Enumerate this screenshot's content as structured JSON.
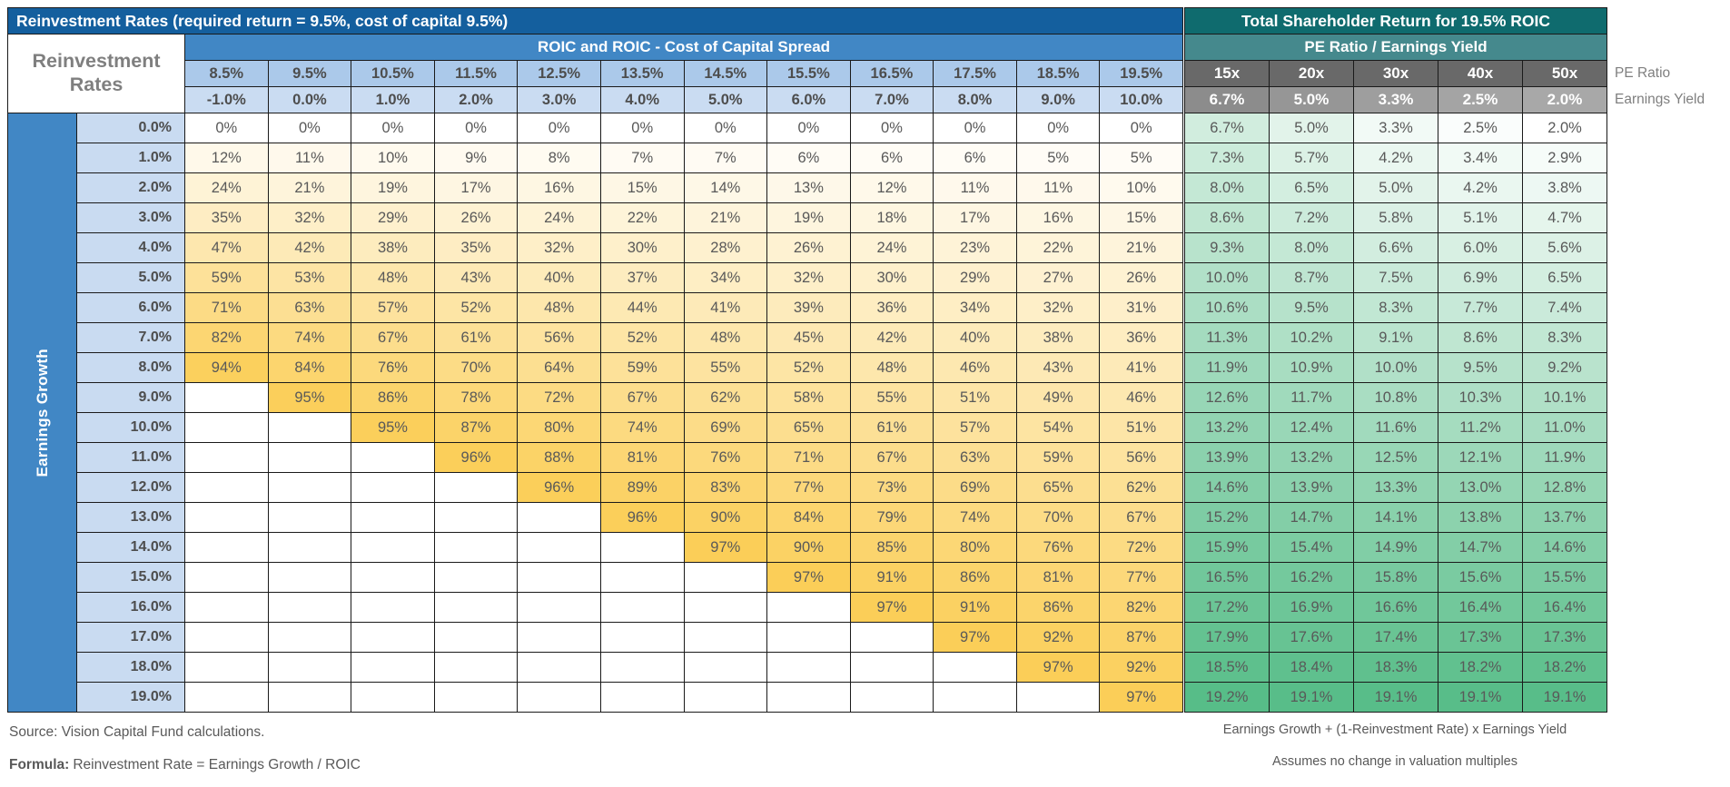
{
  "corner_label": "Reinvestment Rates",
  "side_labels": {
    "pe": "PE Ratio",
    "ey": "Earnings Yield"
  },
  "footnotes": {
    "source": "Source: Vision Capital Fund calculations.",
    "formula_label": "Formula:",
    "formula_text": "Reinvestment Rate = Earnings Growth / ROIC",
    "tsr_formula": "Earnings Growth + (1-Reinvestment Rate) x Earnings Yield",
    "tsr_assumption": "Assumes no change in valuation multiples"
  },
  "colors": {
    "title_blue": "#145f9e",
    "mid_blue": "#4187c5",
    "light_blue": "#abc9ea",
    "lighter_blue": "#cadcf2",
    "row_label_blue": "#c9dbf1",
    "title_teal": "#0f6b6e",
    "mid_teal": "#45898d",
    "pe_gray": "#696969",
    "grid_line": "#1a1a1a",
    "text_gray": "#595959",
    "header_text": "#4d4d4d",
    "corner_text": "#7f7f7f",
    "footnote_text": "#595959",
    "ey_grays": [
      "#8c8c8c",
      "#969696",
      "#9e9e9e",
      "#a4a4a4",
      "#a8a8a8"
    ]
  },
  "chart_data": [
    {
      "type": "heatmap",
      "title": "Reinvestment Rates (required return = 9.5%, cost of capital 9.5%)",
      "subtitle": "ROIC and ROIC - Cost of Capital Spread",
      "ylabel": "Earnings Growth",
      "roic_headers": [
        "8.5%",
        "9.5%",
        "10.5%",
        "11.5%",
        "12.5%",
        "13.5%",
        "14.5%",
        "15.5%",
        "16.5%",
        "17.5%",
        "18.5%",
        "19.5%"
      ],
      "spread_headers": [
        "-1.0%",
        "0.0%",
        "1.0%",
        "2.0%",
        "3.0%",
        "4.0%",
        "5.0%",
        "6.0%",
        "7.0%",
        "8.0%",
        "9.0%",
        "10.0%"
      ],
      "y_categories": [
        "0.0%",
        "1.0%",
        "2.0%",
        "3.0%",
        "4.0%",
        "5.0%",
        "6.0%",
        "7.0%",
        "8.0%",
        "9.0%",
        "10.0%",
        "11.0%",
        "12.0%",
        "13.0%",
        "14.0%",
        "15.0%",
        "16.0%",
        "17.0%",
        "18.0%",
        "19.0%"
      ],
      "values_pct": [
        [
          0,
          0,
          0,
          0,
          0,
          0,
          0,
          0,
          0,
          0,
          0,
          0
        ],
        [
          12,
          11,
          10,
          9,
          8,
          7,
          7,
          6,
          6,
          6,
          5,
          5
        ],
        [
          24,
          21,
          19,
          17,
          16,
          15,
          14,
          13,
          12,
          11,
          11,
          10
        ],
        [
          35,
          32,
          29,
          26,
          24,
          22,
          21,
          19,
          18,
          17,
          16,
          15
        ],
        [
          47,
          42,
          38,
          35,
          32,
          30,
          28,
          26,
          24,
          23,
          22,
          21
        ],
        [
          59,
          53,
          48,
          43,
          40,
          37,
          34,
          32,
          30,
          29,
          27,
          26
        ],
        [
          71,
          63,
          57,
          52,
          48,
          44,
          41,
          39,
          36,
          34,
          32,
          31
        ],
        [
          82,
          74,
          67,
          61,
          56,
          52,
          48,
          45,
          42,
          40,
          38,
          36
        ],
        [
          94,
          84,
          76,
          70,
          64,
          59,
          55,
          52,
          48,
          46,
          43,
          41
        ],
        [
          null,
          95,
          86,
          78,
          72,
          67,
          62,
          58,
          55,
          51,
          49,
          46
        ],
        [
          null,
          null,
          95,
          87,
          80,
          74,
          69,
          65,
          61,
          57,
          54,
          51
        ],
        [
          null,
          null,
          null,
          96,
          88,
          81,
          76,
          71,
          67,
          63,
          59,
          56
        ],
        [
          null,
          null,
          null,
          null,
          96,
          89,
          83,
          77,
          73,
          69,
          65,
          62
        ],
        [
          null,
          null,
          null,
          null,
          null,
          96,
          90,
          84,
          79,
          74,
          70,
          67
        ],
        [
          null,
          null,
          null,
          null,
          null,
          null,
          97,
          90,
          85,
          80,
          76,
          72
        ],
        [
          null,
          null,
          null,
          null,
          null,
          null,
          null,
          97,
          91,
          86,
          81,
          77
        ],
        [
          null,
          null,
          null,
          null,
          null,
          null,
          null,
          null,
          97,
          91,
          86,
          82
        ],
        [
          null,
          null,
          null,
          null,
          null,
          null,
          null,
          null,
          null,
          97,
          92,
          87
        ],
        [
          null,
          null,
          null,
          null,
          null,
          null,
          null,
          null,
          null,
          null,
          97,
          92
        ],
        [
          null,
          null,
          null,
          null,
          null,
          null,
          null,
          null,
          null,
          null,
          null,
          97
        ]
      ],
      "colorscale": {
        "min": 0,
        "max": 97,
        "min_color": "#ffffff",
        "max_color": "#fbce58"
      }
    },
    {
      "type": "heatmap",
      "title": "Total Shareholder Return for 19.5% ROIC",
      "subtitle": "PE Ratio / Earnings Yield",
      "pe_headers": [
        "15x",
        "20x",
        "30x",
        "40x",
        "50x"
      ],
      "earnings_yield_headers": [
        "6.7%",
        "5.0%",
        "3.3%",
        "2.5%",
        "2.0%"
      ],
      "values_pct": [
        [
          6.7,
          5.0,
          3.3,
          2.5,
          2.0
        ],
        [
          7.3,
          5.7,
          4.2,
          3.4,
          2.9
        ],
        [
          8.0,
          6.5,
          5.0,
          4.2,
          3.8
        ],
        [
          8.6,
          7.2,
          5.8,
          5.1,
          4.7
        ],
        [
          9.3,
          8.0,
          6.6,
          6.0,
          5.6
        ],
        [
          10.0,
          8.7,
          7.5,
          6.9,
          6.5
        ],
        [
          10.6,
          9.5,
          8.3,
          7.7,
          7.4
        ],
        [
          11.3,
          10.2,
          9.1,
          8.6,
          8.3
        ],
        [
          11.9,
          10.9,
          10.0,
          9.5,
          9.2
        ],
        [
          12.6,
          11.7,
          10.8,
          10.3,
          10.1
        ],
        [
          13.2,
          12.4,
          11.6,
          11.2,
          11.0
        ],
        [
          13.9,
          13.2,
          12.5,
          12.1,
          11.9
        ],
        [
          14.6,
          13.9,
          13.3,
          13.0,
          12.8
        ],
        [
          15.2,
          14.7,
          14.1,
          13.8,
          13.7
        ],
        [
          15.9,
          15.4,
          14.9,
          14.7,
          14.6
        ],
        [
          16.5,
          16.2,
          15.8,
          15.6,
          15.5
        ],
        [
          17.2,
          16.9,
          16.6,
          16.4,
          16.4
        ],
        [
          17.9,
          17.6,
          17.4,
          17.3,
          17.3
        ],
        [
          18.5,
          18.4,
          18.3,
          18.2,
          18.2
        ],
        [
          19.2,
          19.1,
          19.1,
          19.1,
          19.1
        ]
      ],
      "colorscale": {
        "min": 2.0,
        "max": 19.2,
        "min_color": "#ffffff",
        "max_color": "#57bd88"
      }
    }
  ]
}
